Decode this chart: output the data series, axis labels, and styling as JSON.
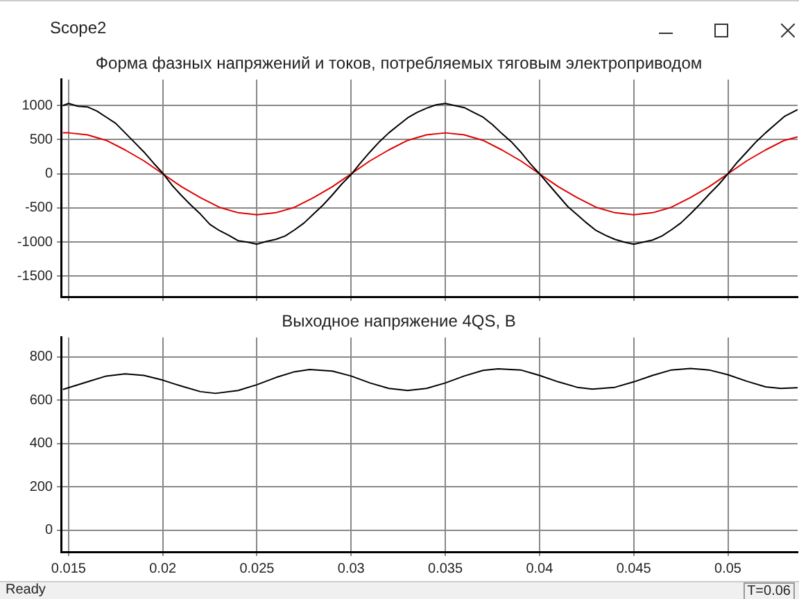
{
  "chart_data": [
    {
      "type": "line",
      "title": "Форма фазных напряжений и токов, потребляемых тяговым электроприводом",
      "annotations": [
        "Scope2"
      ],
      "xlim": [
        0.0146,
        0.0537
      ],
      "xticks": [
        0.015,
        0.02,
        0.025,
        0.03,
        0.035,
        0.04,
        0.045,
        0.05
      ],
      "ylim": [
        -1800,
        1380
      ],
      "yticks": [
        -1500,
        -1000,
        -500,
        0,
        500,
        1000
      ],
      "grid": true,
      "tick_labels": "y",
      "marker": "none",
      "line_style": "solid",
      "series": [
        {
          "color": "#000000",
          "x": [
            0.0147,
            0.015,
            0.0155,
            0.016,
            0.0165,
            0.017,
            0.0175,
            0.018,
            0.0185,
            0.019,
            0.0195,
            0.02,
            0.0205,
            0.021,
            0.0215,
            0.022,
            0.0225,
            0.023,
            0.0235,
            0.024,
            0.0245,
            0.025,
            0.0255,
            0.026,
            0.0265,
            0.027,
            0.0275,
            0.028,
            0.0285,
            0.029,
            0.0295,
            0.03,
            0.0305,
            0.031,
            0.0315,
            0.032,
            0.0325,
            0.033,
            0.0335,
            0.034,
            0.0345,
            0.035,
            0.0355,
            0.036,
            0.0365,
            0.037,
            0.0375,
            0.038,
            0.0385,
            0.039,
            0.0395,
            0.04,
            0.0405,
            0.041,
            0.0415,
            0.042,
            0.0425,
            0.043,
            0.0435,
            0.044,
            0.0445,
            0.045,
            0.0455,
            0.046,
            0.0465,
            0.047,
            0.0475,
            0.048,
            0.0485,
            0.049,
            0.0495,
            0.05,
            0.0505,
            0.051,
            0.0515,
            0.052,
            0.0525,
            0.053,
            0.0537
          ],
          "values": [
            1000,
            1030,
            990,
            980,
            920,
            830,
            740,
            600,
            460,
            320,
            160,
            10,
            -170,
            -320,
            -460,
            -590,
            -740,
            -830,
            -900,
            -980,
            -1000,
            -1030,
            -990,
            -960,
            -910,
            -820,
            -720,
            -590,
            -460,
            -310,
            -150,
            -10,
            160,
            320,
            470,
            600,
            710,
            820,
            900,
            960,
            1010,
            1030,
            1000,
            970,
            900,
            830,
            720,
            590,
            470,
            320,
            150,
            0,
            -160,
            -320,
            -480,
            -600,
            -720,
            -830,
            -900,
            -960,
            -1000,
            -1030,
            -1000,
            -970,
            -910,
            -820,
            -720,
            -590,
            -450,
            -300,
            -160,
            0,
            170,
            320,
            470,
            600,
            720,
            840,
            940
          ]
        },
        {
          "color": "#e00000",
          "x": [
            0.0147,
            0.015,
            0.016,
            0.017,
            0.018,
            0.019,
            0.02,
            0.021,
            0.022,
            0.023,
            0.024,
            0.025,
            0.026,
            0.027,
            0.028,
            0.029,
            0.03,
            0.031,
            0.032,
            0.033,
            0.034,
            0.035,
            0.036,
            0.037,
            0.038,
            0.039,
            0.04,
            0.041,
            0.042,
            0.043,
            0.044,
            0.045,
            0.046,
            0.047,
            0.048,
            0.049,
            0.05,
            0.051,
            0.052,
            0.053,
            0.0537
          ],
          "values": [
            600,
            600,
            570,
            490,
            350,
            190,
            0,
            -190,
            -350,
            -490,
            -570,
            -600,
            -570,
            -490,
            -350,
            -190,
            0,
            190,
            350,
            490,
            570,
            600,
            570,
            490,
            350,
            190,
            0,
            -190,
            -350,
            -490,
            -570,
            -600,
            -570,
            -490,
            -350,
            -190,
            0,
            190,
            350,
            490,
            540
          ]
        }
      ]
    },
    {
      "type": "line",
      "title": "Выходное напряжение 4QS, В",
      "annotations": [
        "Ready",
        "T=0.06"
      ],
      "xlim": [
        0.0146,
        0.0537
      ],
      "xticks": [
        0.015,
        0.02,
        0.025,
        0.03,
        0.035,
        0.04,
        0.045,
        0.05
      ],
      "ylim": [
        -100,
        890
      ],
      "yticks": [
        0,
        200,
        400,
        600,
        800
      ],
      "grid": true,
      "marker": "none",
      "line_style": "solid",
      "series": [
        {
          "color": "#000000",
          "x": [
            0.0147,
            0.016,
            0.017,
            0.018,
            0.019,
            0.02,
            0.021,
            0.022,
            0.0228,
            0.024,
            0.025,
            0.026,
            0.027,
            0.0278,
            0.029,
            0.03,
            0.031,
            0.032,
            0.033,
            0.034,
            0.035,
            0.036,
            0.037,
            0.0378,
            0.039,
            0.04,
            0.041,
            0.042,
            0.0428,
            0.044,
            0.045,
            0.046,
            0.047,
            0.048,
            0.049,
            0.05,
            0.051,
            0.052,
            0.0528,
            0.0537
          ],
          "values": [
            650,
            685,
            712,
            722,
            715,
            693,
            665,
            640,
            632,
            645,
            672,
            705,
            732,
            742,
            735,
            712,
            680,
            655,
            645,
            655,
            680,
            712,
            738,
            745,
            740,
            715,
            685,
            660,
            652,
            660,
            685,
            715,
            740,
            747,
            740,
            718,
            688,
            662,
            655,
            658
          ]
        }
      ]
    }
  ]
}
